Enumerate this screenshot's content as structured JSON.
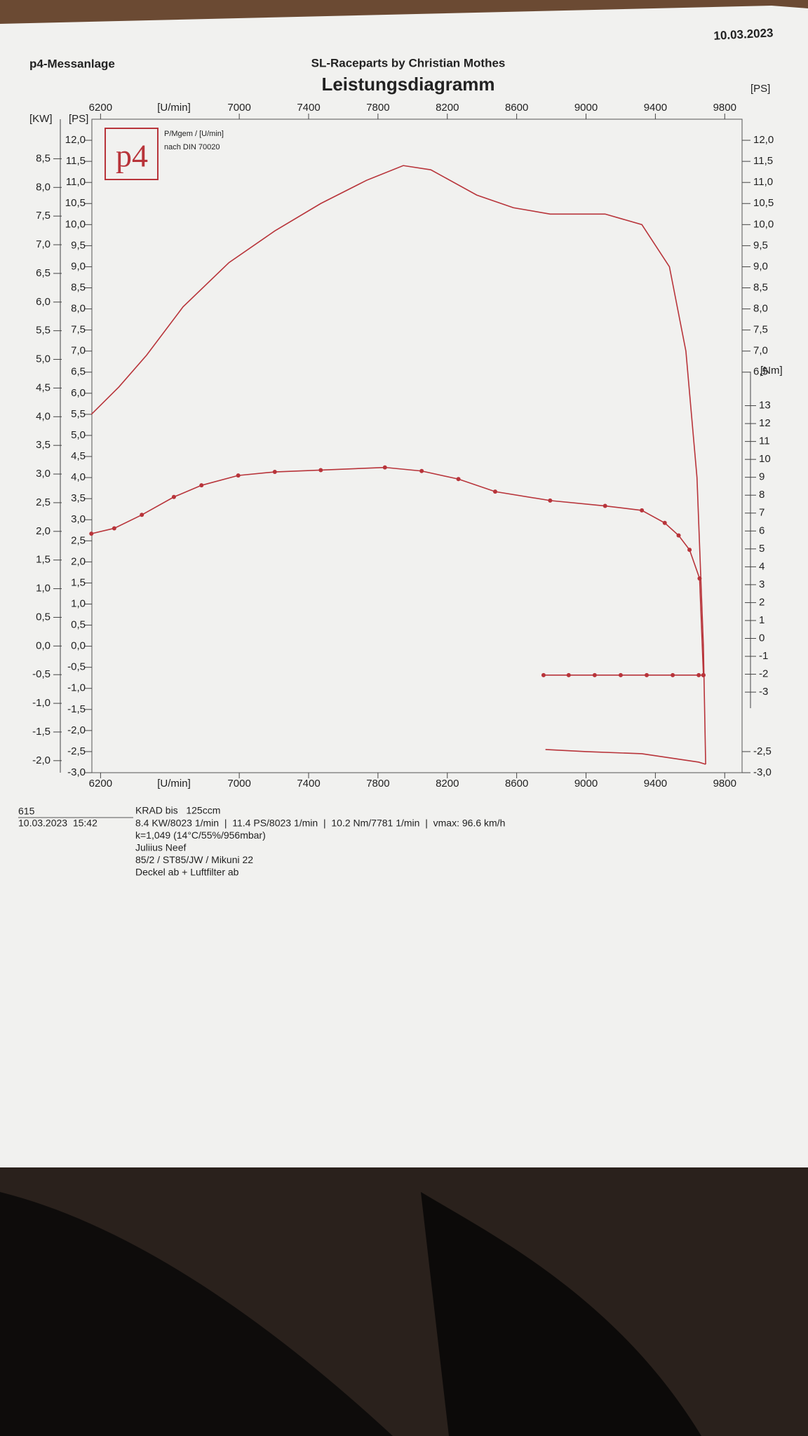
{
  "header": {
    "left": "p4-Messanlage",
    "date": "10.03.2023"
  },
  "logo": {
    "text": "p4",
    "unit_note": "P/Mgem / [U/min]",
    "norm": "nach DIN 70020"
  },
  "chart_data": {
    "type": "line",
    "title": "Leistungsdiagramm",
    "subtitle": "SL-Raceparts by Christian Mothes",
    "xlabel": "[U/min]",
    "ylabel": "[PS]",
    "y2label": "[Nm]",
    "kwlabel": "[KW]",
    "xlim": [
      6150,
      9900
    ],
    "xticks": [
      6200,
      7000,
      7400,
      7800,
      8200,
      8600,
      9000,
      9400,
      9800
    ],
    "ylim": [
      -3,
      12.5
    ],
    "yticks": [
      {
        "value": -3,
        "label": "-3,0"
      },
      {
        "value": -2.5,
        "label": "-2,5"
      },
      {
        "value": -2,
        "label": "-2,0"
      },
      {
        "value": -1.5,
        "label": "-1,5"
      },
      {
        "value": -1,
        "label": "-1,0"
      },
      {
        "value": -0.5,
        "label": "-0,5"
      },
      {
        "value": 0,
        "label": "0,0"
      },
      {
        "value": 0.5,
        "label": "0,5"
      },
      {
        "value": 1,
        "label": "1,0"
      },
      {
        "value": 1.5,
        "label": "1,5"
      },
      {
        "value": 2,
        "label": "2,0"
      },
      {
        "value": 2.5,
        "label": "2,5"
      },
      {
        "value": 3,
        "label": "3,0"
      },
      {
        "value": 3.5,
        "label": "3,5"
      },
      {
        "value": 4,
        "label": "4,0"
      },
      {
        "value": 4.5,
        "label": "4,5"
      },
      {
        "value": 5,
        "label": "5,0"
      },
      {
        "value": 5.5,
        "label": "5,5"
      },
      {
        "value": 6,
        "label": "6,0"
      },
      {
        "value": 6.5,
        "label": "6,5"
      },
      {
        "value": 7,
        "label": "7,0"
      },
      {
        "value": 7.5,
        "label": "7,5"
      },
      {
        "value": 8,
        "label": "8,0"
      },
      {
        "value": 8.5,
        "label": "8,5"
      },
      {
        "value": 9,
        "label": "9,0"
      },
      {
        "value": 9.5,
        "label": "9,5"
      },
      {
        "value": 10,
        "label": "10,0"
      },
      {
        "value": 10.5,
        "label": "10,5"
      },
      {
        "value": 11,
        "label": "11,0"
      },
      {
        "value": 11.5,
        "label": "11,5"
      },
      {
        "value": 12,
        "label": "12,0"
      }
    ],
    "y_right_ticks": [
      {
        "value": 12,
        "label": "12,0"
      },
      {
        "value": 11.5,
        "label": "11,5"
      },
      {
        "value": 11,
        "label": "11,0"
      },
      {
        "value": 10.5,
        "label": "10,5"
      },
      {
        "value": 10,
        "label": "10,0"
      },
      {
        "value": 9.5,
        "label": "9,5"
      },
      {
        "value": 9,
        "label": "9,0"
      },
      {
        "value": 8.5,
        "label": "8,5"
      },
      {
        "value": 8,
        "label": "8,0"
      },
      {
        "value": 7.5,
        "label": "7,5"
      },
      {
        "value": 7,
        "label": "7,0"
      },
      {
        "value": 6.5,
        "label": "6,5"
      },
      {
        "value": -2.5,
        "label": "-2,5"
      },
      {
        "value": -3,
        "label": "-3,0"
      }
    ],
    "kwlim": [
      -2.21,
      9.19
    ],
    "kwticks": [
      {
        "value": -2,
        "label": "-2,0"
      },
      {
        "value": -1.5,
        "label": "-1,5"
      },
      {
        "value": -1,
        "label": "-1,0"
      },
      {
        "value": -0.5,
        "label": "-0,5"
      },
      {
        "value": 0,
        "label": "0,0"
      },
      {
        "value": 0.5,
        "label": "0,5"
      },
      {
        "value": 1,
        "label": "1,0"
      },
      {
        "value": 1.5,
        "label": "1,5"
      },
      {
        "value": 2,
        "label": "2,0"
      },
      {
        "value": 2.5,
        "label": "2,5"
      },
      {
        "value": 3,
        "label": "3,0"
      },
      {
        "value": 3.5,
        "label": "3,5"
      },
      {
        "value": 4,
        "label": "4,0"
      },
      {
        "value": 4.5,
        "label": "4,5"
      },
      {
        "value": 5,
        "label": "5,0"
      },
      {
        "value": 5.5,
        "label": "5,5"
      },
      {
        "value": 6,
        "label": "6,0"
      },
      {
        "value": 6.5,
        "label": "6,5"
      },
      {
        "value": 7,
        "label": "7,0"
      },
      {
        "value": 7.5,
        "label": "7,5"
      },
      {
        "value": 8,
        "label": "8,0"
      },
      {
        "value": 8.5,
        "label": "8,5"
      }
    ],
    "y2lim": [
      -7.5,
      29
    ],
    "y2ticks": [
      -3,
      -2,
      -1,
      0,
      1,
      2,
      3,
      4,
      5,
      6,
      7,
      8,
      9,
      10,
      11,
      12,
      13
    ],
    "series": [
      {
        "color": "#b8343a",
        "x": [
          6147,
          6306,
          6465,
          6676,
          6941,
          7205,
          7470,
          7734,
          7946,
          8105,
          8370,
          8581,
          8793,
          9110,
          9322,
          9481,
          9576,
          9640,
          9677,
          9690
        ],
        "values": [
          5.5,
          6.15,
          6.9,
          8.05,
          9.1,
          9.85,
          10.5,
          11.05,
          11.4,
          11.3,
          10.7,
          10.4,
          10.25,
          10.25,
          10.0,
          9.0,
          7.0,
          4.0,
          0.0,
          -2.8
        ]
      },
      {
        "color": "#b8343a",
        "x": [
          8766,
          9000,
          9322,
          9650,
          9690
        ],
        "values": [
          -2.45,
          -2.5,
          -2.55,
          -2.75,
          -2.8
        ]
      },
      {
        "color": "#b8343a",
        "axis": "y2",
        "marker": "circle",
        "x": [
          6147,
          6279,
          6438,
          6623,
          6782,
          6994,
          7205,
          7470,
          7840,
          8052,
          8264,
          8476,
          8793,
          9110,
          9322,
          9454,
          9534,
          9597,
          9655,
          9677
        ],
        "values": [
          5.85,
          6.15,
          6.9,
          7.9,
          8.55,
          9.1,
          9.3,
          9.4,
          9.55,
          9.35,
          8.9,
          8.2,
          7.7,
          7.4,
          7.15,
          6.45,
          5.75,
          4.95,
          3.35,
          -2.05
        ]
      },
      {
        "color": "#b8343a",
        "axis": "y2",
        "marker": "circle",
        "x": [
          8755,
          8900,
          9050,
          9200,
          9350,
          9500,
          9650,
          9677
        ],
        "values": [
          -2.05,
          -2.05,
          -2.05,
          -2.05,
          -2.05,
          -2.05,
          -2.05,
          -2.05
        ]
      }
    ]
  },
  "footer": {
    "number": "615",
    "timestamp": "10.03.2023  15:42",
    "lines": [
      "KRAD bis   125ccm",
      "8.4 KW/8023 1/min  |  11.4 PS/8023 1/min  |  10.2 Nm/7781 1/min  |  vmax: 96.6 km/h",
      "k=1,049 (14°C/55%/956mbar)",
      "Juliius Neef",
      "85/2 / ST85/JW / Mikuni 22",
      "Deckel ab + Luftfilter ab"
    ]
  }
}
